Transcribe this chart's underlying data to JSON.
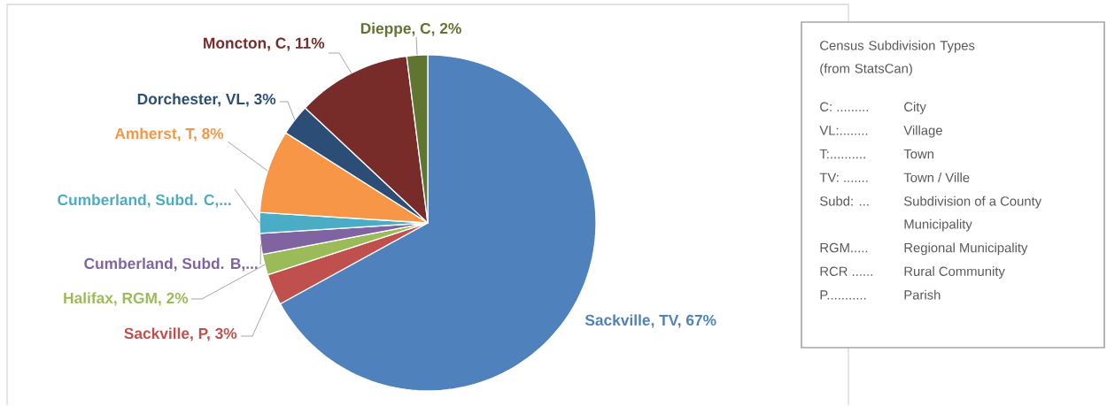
{
  "chart_data": {
    "type": "pie",
    "categories": [
      "Sackville, TV, 67%",
      "Sackville, P, 3%",
      "Halifax, RGM, 2%",
      "Cumberland, Subd. B,...",
      "Cumberland, Subd. C,...",
      "Amherst, T, 8%",
      "Dorchester, VL, 3%",
      "Moncton, C, 11%",
      "Dieppe, C, 2%"
    ],
    "values": [
      67,
      3,
      2,
      2,
      2,
      8,
      3,
      11,
      2
    ],
    "colors": [
      "#4f81bd",
      "#c0504d",
      "#9bbb59",
      "#8064a2",
      "#4bacc6",
      "#f79646",
      "#2c4d75",
      "#772c2a",
      "#5f7530"
    ],
    "annotations": [
      "Census Subdivision Types (from StatsCan)",
      "C: .........",
      "City",
      "VL:........",
      "Village",
      "T:..........",
      "Town",
      "TV: .......",
      "Town / Ville",
      "Subd: ...",
      "Subdivision of a County Municipality",
      "RGM.....",
      "Regional Municipality",
      "RCR ......",
      "Rural Community",
      "P...........",
      "Parish"
    ]
  }
}
